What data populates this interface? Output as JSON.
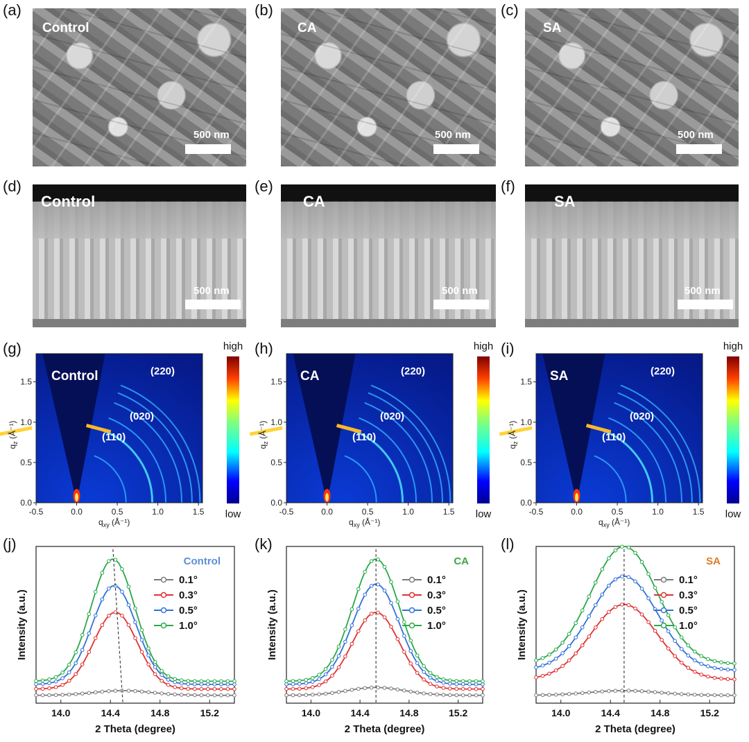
{
  "panel_labels": [
    "(a)",
    "(b)",
    "(c)",
    "(d)",
    "(e)",
    "(f)",
    "(g)",
    "(h)",
    "(i)",
    "(j)",
    "(k)",
    "(l)"
  ],
  "samples": [
    "Control",
    "CA",
    "SA"
  ],
  "scale_bar": "500 nm",
  "gixd": {
    "peaks": [
      "(220)",
      "(020)",
      "(110)"
    ],
    "xlabel_q": "q",
    "xlabel_sub": "xy",
    "xlabel_unit": " (Å⁻¹)",
    "ylabel_q": "q",
    "ylabel_sub": "z",
    "ylabel_unit": " (Å⁻¹)",
    "colorbar_high": "high",
    "colorbar_low": "low",
    "xticks": [
      "-0.5",
      "0.0",
      "0.5",
      "1.0",
      "1.5"
    ],
    "yticks": [
      "0.0",
      "0.5",
      "1.0",
      "1.5"
    ]
  },
  "legend_colors": {
    "Control": "#5b8fd6",
    "CA": "#3aa845",
    "SA": "#e07a24"
  },
  "chart_data": [
    {
      "type": "line",
      "title": "Control",
      "xlabel": "2 Theta (degree)",
      "ylabel": "Intensity (a.u.)",
      "xlim": [
        13.8,
        15.4
      ],
      "xticks": [
        "14.0",
        "14.4",
        "14.8",
        "15.2"
      ],
      "peak_positions": [
        14.42,
        14.5
      ],
      "series": [
        {
          "name": "0.1°",
          "color": "#7a7a7a",
          "baseline": 0.05,
          "amp": 0.03,
          "center": 14.5,
          "width": 0.33
        },
        {
          "name": "0.3°",
          "color": "#e03030",
          "baseline": 0.09,
          "amp": 0.49,
          "center": 14.44,
          "width": 0.25
        },
        {
          "name": "0.5°",
          "color": "#3070d8",
          "baseline": 0.12,
          "amp": 0.63,
          "center": 14.43,
          "width": 0.25
        },
        {
          "name": "1.0°",
          "color": "#2aa84a",
          "baseline": 0.14,
          "amp": 0.78,
          "center": 14.42,
          "width": 0.25
        }
      ]
    },
    {
      "type": "line",
      "title": "CA",
      "xlabel": "2 Theta (degree)",
      "ylabel": "Intensity (a.u.)",
      "xlim": [
        13.8,
        15.4
      ],
      "xticks": [
        "14.0",
        "14.4",
        "14.8",
        "15.2"
      ],
      "peak_positions": [
        14.53,
        14.53
      ],
      "series": [
        {
          "name": "0.1°",
          "color": "#7a7a7a",
          "baseline": 0.05,
          "amp": 0.05,
          "center": 14.53,
          "width": 0.33
        },
        {
          "name": "0.3°",
          "color": "#e03030",
          "baseline": 0.09,
          "amp": 0.49,
          "center": 14.53,
          "width": 0.27
        },
        {
          "name": "0.5°",
          "color": "#3070d8",
          "baseline": 0.12,
          "amp": 0.64,
          "center": 14.53,
          "width": 0.27
        },
        {
          "name": "1.0°",
          "color": "#2aa84a",
          "baseline": 0.14,
          "amp": 0.78,
          "center": 14.53,
          "width": 0.27
        }
      ]
    },
    {
      "type": "line",
      "title": "SA",
      "xlabel": "2 Theta (degree)",
      "ylabel": "Intensity (a.u.)",
      "xlim": [
        13.8,
        15.4
      ],
      "xticks": [
        "14.0",
        "14.4",
        "14.8",
        "15.2"
      ],
      "peak_positions": [
        14.51,
        14.51
      ],
      "series": [
        {
          "name": "0.1°",
          "color": "#7a7a7a",
          "baseline": 0.05,
          "amp": 0.03,
          "center": 14.51,
          "width": 0.4
        },
        {
          "name": "0.3°",
          "color": "#e03030",
          "baseline": 0.15,
          "amp": 0.48,
          "center": 14.51,
          "width": 0.38
        },
        {
          "name": "0.5°",
          "color": "#3070d8",
          "baseline": 0.21,
          "amp": 0.6,
          "center": 14.51,
          "width": 0.38
        },
        {
          "name": "1.0°",
          "color": "#2aa84a",
          "baseline": 0.25,
          "amp": 0.75,
          "center": 14.51,
          "width": 0.38
        }
      ]
    }
  ]
}
